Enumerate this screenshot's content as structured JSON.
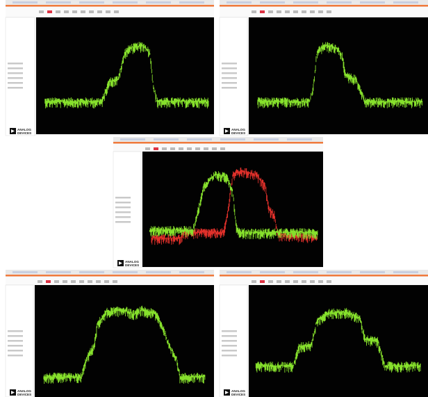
{
  "panels": [
    {
      "logo_line1": "ANALOG",
      "logo_line2": "DEVICES"
    },
    {
      "logo_line1": "ANALOG",
      "logo_line2": "DEVICES"
    },
    {
      "logo_line1": "ANALOG",
      "logo_line2": "DEVICES"
    },
    {
      "logo_line1": "ANALOG",
      "logo_line2": "DEVICES"
    },
    {
      "logo_line1": "ANALOG",
      "logo_line2": "DEVICES"
    }
  ]
}
